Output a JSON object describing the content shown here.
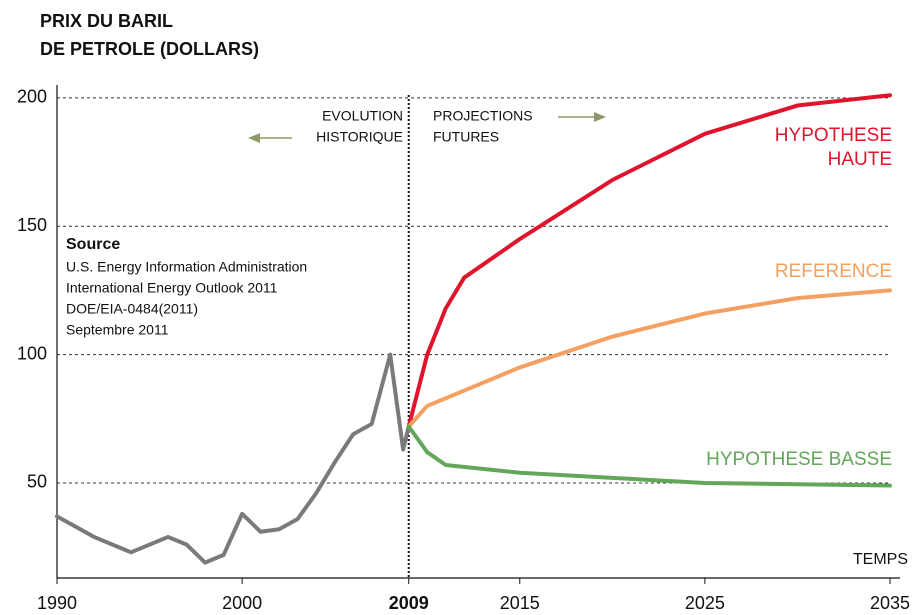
{
  "chart_data": {
    "type": "line",
    "title_lines": [
      "PRIX DU BARIL",
      "DE PETROLE (DOLLARS)"
    ],
    "xlabel": "TEMPS",
    "xlim": [
      1990,
      2035
    ],
    "xticks": [
      1990,
      2000,
      2009,
      2015,
      2025,
      2035
    ],
    "ylim": [
      13,
      205
    ],
    "yticks": [
      50,
      100,
      150,
      200
    ],
    "grid": true,
    "divider_x": 2009,
    "left_note": [
      "EVOLUTION",
      "HISTORIQUE"
    ],
    "right_note": [
      "PROJECTIONS",
      "FUTURES"
    ],
    "source_title": "Source",
    "source_lines": [
      "U.S. Energy Information Administration",
      "International Energy Outlook 2011",
      "DOE/EIA-0484(2011)",
      "Septembre 2011"
    ],
    "series": [
      {
        "color": "#7a7a7a",
        "x": [
          1990,
          1992,
          1994,
          1996,
          1997,
          1998,
          1999,
          2000,
          2001,
          2002,
          2003,
          2004,
          2005,
          2006,
          2007,
          2008,
          2008.7,
          2009
        ],
        "values": [
          37,
          29,
          23,
          29,
          26,
          19,
          22,
          38,
          31,
          32,
          36,
          46,
          58,
          69,
          73,
          100,
          63,
          72
        ]
      },
      {
        "name": "HYPOTHESE HAUTE",
        "color": "#e0142d",
        "x": [
          2009,
          2010,
          2011,
          2012,
          2015,
          2020,
          2025,
          2030,
          2035
        ],
        "values": [
          72,
          100,
          118,
          130,
          145,
          168,
          186,
          197,
          201
        ]
      },
      {
        "name": "REFERENCE",
        "color": "#f4a060",
        "x": [
          2009,
          2010,
          2012,
          2015,
          2020,
          2025,
          2030,
          2035
        ],
        "values": [
          72,
          80,
          86,
          95,
          107,
          116,
          122,
          125
        ]
      },
      {
        "name": "HYPOTHESE BASSE",
        "color": "#62a75a",
        "x": [
          2009,
          2010,
          2011,
          2015,
          2020,
          2025,
          2030,
          2035
        ],
        "values": [
          72,
          62,
          57,
          54,
          52,
          50,
          49.5,
          49
        ]
      }
    ]
  }
}
